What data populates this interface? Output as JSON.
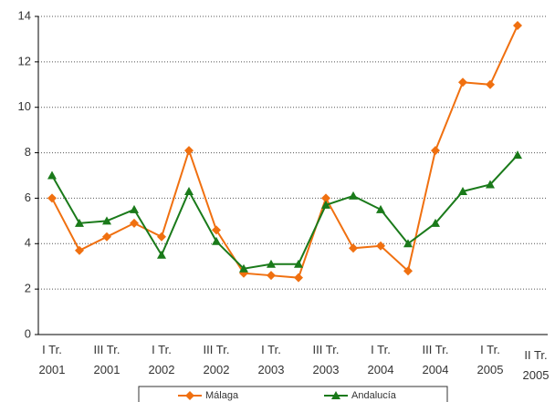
{
  "chart_data": {
    "type": "line",
    "categories": [
      "I Tr.\n2001",
      null,
      "III Tr.\n2001",
      null,
      "I Tr.\n2002",
      null,
      "III Tr.\n2002",
      null,
      "I Tr.\n2003",
      null,
      "III Tr.\n2003",
      null,
      "I Tr.\n2004",
      null,
      "III Tr.\n2004",
      null,
      "I Tr.\n2005",
      "II Tr.\n2005"
    ],
    "series": [
      {
        "name": "Málaga",
        "color": "#f07010",
        "marker": "diamond",
        "values": [
          6.0,
          3.7,
          4.3,
          4.9,
          4.3,
          8.1,
          4.6,
          2.7,
          2.6,
          2.5,
          6.0,
          3.8,
          3.9,
          2.8,
          8.1,
          11.1,
          11.0,
          13.6
        ]
      },
      {
        "name": "Andalucía",
        "color": "#1a7a1a",
        "marker": "triangle",
        "values": [
          7.0,
          4.9,
          5.0,
          5.5,
          3.5,
          6.3,
          4.1,
          2.9,
          3.1,
          3.1,
          5.7,
          6.1,
          5.5,
          4.0,
          4.9,
          6.3,
          6.6,
          7.9
        ]
      }
    ],
    "ylim": [
      0,
      14
    ],
    "yticks": [
      0,
      2,
      4,
      6,
      8,
      10,
      12,
      14
    ],
    "grid": true,
    "legend": "bottom"
  }
}
